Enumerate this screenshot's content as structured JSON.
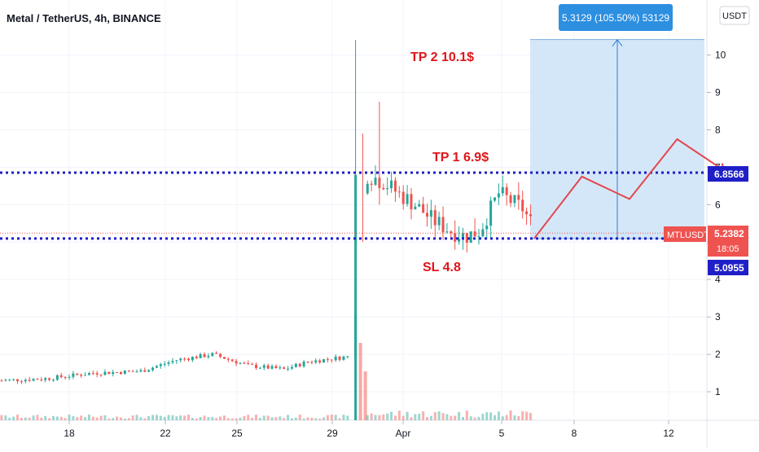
{
  "header": {
    "title": "Metal / TetherUS, 4h, BINANCE"
  },
  "currency_button": {
    "label": "USDT"
  },
  "measure_label": "5.3129 (105.50%) 53129",
  "annotations": {
    "tp2": "TP 2 10.1$",
    "tp1": "TP 1 6.9$",
    "sl": "SL 4.8"
  },
  "price_tags": {
    "tp_level": "6.8566",
    "sl_level": "5.0955",
    "symbol": "MTLUSDT",
    "current": "5.2382",
    "countdown": "18:05"
  },
  "colors": {
    "up": "#26a69a",
    "down": "#ef5350",
    "level_line": "#1f1fc8",
    "annotation": "#e0151a",
    "measure_fill": "#cfe4f7",
    "measure_line": "#2f7fd0",
    "projection": "#e2474d",
    "current_tag": "#ef5350",
    "measure_label_bg": "#2d8fe0"
  },
  "chart_data": {
    "type": "candlestick",
    "symbol": "MTLUSDT",
    "timeframe": "4h",
    "exchange": "BINANCE",
    "y_axis": {
      "label": "USDT",
      "ticks": [
        1,
        2,
        3,
        4,
        5,
        6,
        7,
        8,
        9,
        10
      ],
      "range": [
        0,
        10.6
      ]
    },
    "x_axis": {
      "ticks": [
        "18",
        "22",
        "25",
        "29",
        "Apr",
        "5",
        "8",
        "12"
      ]
    },
    "levels": {
      "take_profit_1": 6.8566,
      "stop_loss": 5.0955,
      "current": 5.2382
    },
    "measure": {
      "from": 5.0955,
      "to": 10.4084,
      "change": 5.3129,
      "percent": 105.5,
      "ticks": 53129
    },
    "projection_path": [
      [
        6.25,
        5.1
      ],
      [
        6.75,
        6.75
      ],
      [
        7.25,
        6.15
      ],
      [
        7.75,
        7.75
      ],
      [
        8.25,
        6.9
      ]
    ],
    "series": [
      {
        "name": "before_spike",
        "start_day": 15,
        "end_day": 29.8,
        "points": [
          [
            15,
            1.3
          ],
          [
            17,
            1.35
          ],
          [
            19,
            1.5
          ],
          [
            21,
            1.55
          ],
          [
            22.5,
            1.85
          ],
          [
            24,
            2.0
          ],
          [
            25.5,
            1.7
          ],
          [
            27,
            1.6
          ],
          [
            28,
            1.8
          ],
          [
            29.8,
            1.95
          ]
        ]
      },
      {
        "name": "after_spike",
        "start_day": 30.5,
        "end_day": 37.4,
        "points": [
          [
            30.5,
            6.8
          ],
          [
            31.2,
            6.6
          ],
          [
            31.8,
            6.3
          ],
          [
            32.5,
            6.0
          ],
          [
            33.2,
            5.6
          ],
          [
            34,
            5.3
          ],
          [
            34.6,
            5.15
          ],
          [
            35.2,
            5.3
          ],
          [
            35.6,
            5.8
          ],
          [
            36,
            6.3
          ],
          [
            36.5,
            6.1
          ],
          [
            37,
            5.9
          ],
          [
            37.4,
            5.45
          ]
        ]
      }
    ],
    "volume": {
      "spike_day": 30
    }
  }
}
